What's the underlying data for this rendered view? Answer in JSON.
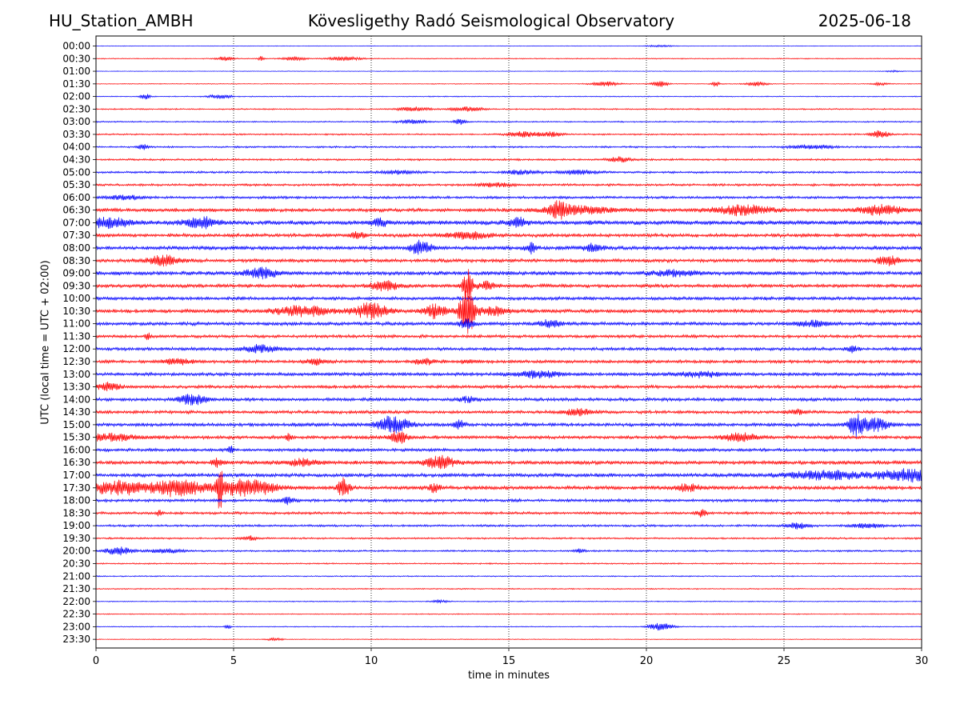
{
  "header": {
    "station": "HU_Station_AMBH",
    "observatory": "Kövesligethy Radó Seismological Observatory",
    "date": "2025-06-18"
  },
  "chart_data": {
    "type": "line",
    "xlabel": "time in minutes",
    "ylabel": "UTC (local time = UTC + 02:00)",
    "xlim": [
      0,
      30
    ],
    "xticks": [
      0,
      5,
      10,
      15,
      20,
      25,
      30
    ],
    "vertical_grid": "dotted",
    "trace_colors": [
      "#0000ff",
      "#ff0000"
    ],
    "row_labels": [
      "00:00",
      "00:30",
      "01:00",
      "01:30",
      "02:00",
      "02:30",
      "03:00",
      "03:30",
      "04:00",
      "04:30",
      "05:00",
      "05:30",
      "06:00",
      "06:30",
      "07:00",
      "07:30",
      "08:00",
      "08:30",
      "09:00",
      "09:30",
      "10:00",
      "10:30",
      "11:00",
      "11:30",
      "12:00",
      "12:30",
      "13:00",
      "13:30",
      "14:00",
      "14:30",
      "15:00",
      "15:30",
      "16:00",
      "16:30",
      "17:00",
      "17:30",
      "18:00",
      "18:30",
      "19:00",
      "19:30",
      "20:00",
      "20:30",
      "21:00",
      "21:30",
      "22:00",
      "22:30",
      "23:00",
      "23:30"
    ],
    "base_level": [
      0.3,
      0.5,
      0.3,
      0.4,
      0.5,
      0.7,
      0.7,
      0.8,
      0.9,
      1.0,
      1.1,
      1.2,
      1.3,
      1.8,
      2.3,
      1.8,
      2.0,
      1.8,
      2.0,
      1.8,
      1.7,
      1.9,
      1.8,
      1.6,
      1.6,
      1.6,
      1.7,
      1.6,
      1.7,
      1.6,
      1.8,
      1.7,
      1.6,
      1.9,
      1.9,
      2.0,
      1.5,
      1.3,
      1.1,
      0.9,
      0.9,
      0.7,
      0.6,
      0.6,
      0.5,
      0.5,
      0.5,
      0.4
    ],
    "events": [
      {
        "row": 0,
        "t": 20.5,
        "amp": 1.0,
        "w": 0.5
      },
      {
        "row": 1,
        "t": 4.7,
        "amp": 2.5,
        "w": 0.3
      },
      {
        "row": 1,
        "t": 6.0,
        "amp": 3.0,
        "w": 0.1
      },
      {
        "row": 1,
        "t": 7.2,
        "amp": 2.5,
        "w": 0.4
      },
      {
        "row": 1,
        "t": 9.0,
        "amp": 2.5,
        "w": 0.6
      },
      {
        "row": 2,
        "t": 29.0,
        "amp": 1.0,
        "w": 0.3
      },
      {
        "row": 3,
        "t": 18.5,
        "amp": 3.0,
        "w": 0.5
      },
      {
        "row": 3,
        "t": 20.5,
        "amp": 3.5,
        "w": 0.3
      },
      {
        "row": 3,
        "t": 22.5,
        "amp": 3.5,
        "w": 0.15
      },
      {
        "row": 3,
        "t": 24.0,
        "amp": 2.5,
        "w": 0.4
      },
      {
        "row": 3,
        "t": 28.5,
        "amp": 1.5,
        "w": 0.3
      },
      {
        "row": 4,
        "t": 1.8,
        "amp": 3.0,
        "w": 0.2
      },
      {
        "row": 4,
        "t": 4.5,
        "amp": 2.5,
        "w": 0.4
      },
      {
        "row": 5,
        "t": 11.5,
        "amp": 2.5,
        "w": 0.6
      },
      {
        "row": 5,
        "t": 13.5,
        "amp": 2.5,
        "w": 0.6
      },
      {
        "row": 6,
        "t": 11.5,
        "amp": 2.5,
        "w": 0.5
      },
      {
        "row": 6,
        "t": 13.2,
        "amp": 3.5,
        "w": 0.2
      },
      {
        "row": 7,
        "t": 15.5,
        "amp": 3.5,
        "w": 0.5
      },
      {
        "row": 7,
        "t": 16.5,
        "amp": 3.0,
        "w": 0.4
      },
      {
        "row": 7,
        "t": 28.5,
        "amp": 5.0,
        "w": 0.3
      },
      {
        "row": 8,
        "t": 1.7,
        "amp": 3.0,
        "w": 0.2
      },
      {
        "row": 8,
        "t": 26.0,
        "amp": 2.5,
        "w": 0.8
      },
      {
        "row": 9,
        "t": 19.0,
        "amp": 3.0,
        "w": 0.4
      },
      {
        "row": 10,
        "t": 11.0,
        "amp": 2.5,
        "w": 0.6
      },
      {
        "row": 10,
        "t": 15.5,
        "amp": 2.5,
        "w": 0.6
      },
      {
        "row": 10,
        "t": 17.5,
        "amp": 2.5,
        "w": 0.7
      },
      {
        "row": 11,
        "t": 14.5,
        "amp": 2.5,
        "w": 0.6
      },
      {
        "row": 12,
        "t": 1.0,
        "amp": 3.0,
        "w": 0.6
      },
      {
        "row": 13,
        "t": 16.8,
        "amp": 8.0,
        "w": 0.3
      },
      {
        "row": 13,
        "t": 17.5,
        "amp": 5.0,
        "w": 1.2
      },
      {
        "row": 13,
        "t": 23.5,
        "amp": 6.0,
        "w": 1.0
      },
      {
        "row": 13,
        "t": 28.5,
        "amp": 6.0,
        "w": 0.8
      },
      {
        "row": 14,
        "t": 0.5,
        "amp": 6.0,
        "w": 0.8
      },
      {
        "row": 14,
        "t": 3.8,
        "amp": 7.0,
        "w": 0.5
      },
      {
        "row": 14,
        "t": 10.3,
        "amp": 5.0,
        "w": 0.3
      },
      {
        "row": 14,
        "t": 15.3,
        "amp": 6.0,
        "w": 0.3
      },
      {
        "row": 15,
        "t": 9.5,
        "amp": 3.5,
        "w": 0.3
      },
      {
        "row": 15,
        "t": 13.5,
        "amp": 4.0,
        "w": 0.8
      },
      {
        "row": 16,
        "t": 11.8,
        "amp": 9.0,
        "w": 0.4
      },
      {
        "row": 16,
        "t": 15.8,
        "amp": 7.0,
        "w": 0.2
      },
      {
        "row": 16,
        "t": 18.0,
        "amp": 4.0,
        "w": 0.4
      },
      {
        "row": 17,
        "t": 2.5,
        "amp": 6.0,
        "w": 0.6
      },
      {
        "row": 17,
        "t": 28.8,
        "amp": 5.0,
        "w": 0.4
      },
      {
        "row": 18,
        "t": 6.0,
        "amp": 6.0,
        "w": 0.6
      },
      {
        "row": 18,
        "t": 21.0,
        "amp": 3.0,
        "w": 0.8
      },
      {
        "row": 19,
        "t": 10.5,
        "amp": 6.0,
        "w": 0.5
      },
      {
        "row": 19,
        "t": 13.5,
        "amp": 20.0,
        "w": 0.2
      },
      {
        "row": 19,
        "t": 14.2,
        "amp": 5.0,
        "w": 0.3
      },
      {
        "row": 21,
        "t": 7.5,
        "amp": 6.0,
        "w": 1.0
      },
      {
        "row": 21,
        "t": 10.0,
        "amp": 10.0,
        "w": 0.6
      },
      {
        "row": 21,
        "t": 12.3,
        "amp": 8.0,
        "w": 0.4
      },
      {
        "row": 21,
        "t": 13.5,
        "amp": 28.0,
        "w": 0.3
      },
      {
        "row": 21,
        "t": 14.5,
        "amp": 6.0,
        "w": 0.4
      },
      {
        "row": 22,
        "t": 13.5,
        "amp": 5.0,
        "w": 0.3
      },
      {
        "row": 22,
        "t": 16.5,
        "amp": 4.0,
        "w": 0.4
      },
      {
        "row": 22,
        "t": 26.0,
        "amp": 3.5,
        "w": 0.6
      },
      {
        "row": 23,
        "t": 1.9,
        "amp": 4.0,
        "w": 0.1
      },
      {
        "row": 24,
        "t": 6.0,
        "amp": 4.5,
        "w": 0.6
      },
      {
        "row": 24,
        "t": 27.5,
        "amp": 4.0,
        "w": 0.2
      },
      {
        "row": 25,
        "t": 3.0,
        "amp": 3.0,
        "w": 0.6
      },
      {
        "row": 25,
        "t": 8.0,
        "amp": 4.0,
        "w": 0.3
      },
      {
        "row": 25,
        "t": 12.0,
        "amp": 3.5,
        "w": 0.4
      },
      {
        "row": 25,
        "t": 13.5,
        "amp": 3.0,
        "w": 0.2
      },
      {
        "row": 26,
        "t": 16.0,
        "amp": 4.0,
        "w": 0.8
      },
      {
        "row": 26,
        "t": 22.0,
        "amp": 3.0,
        "w": 0.8
      },
      {
        "row": 27,
        "t": 0.5,
        "amp": 5.0,
        "w": 0.4
      },
      {
        "row": 28,
        "t": 3.5,
        "amp": 6.0,
        "w": 0.5
      },
      {
        "row": 28,
        "t": 13.5,
        "amp": 3.0,
        "w": 0.4
      },
      {
        "row": 29,
        "t": 17.5,
        "amp": 4.5,
        "w": 0.5
      },
      {
        "row": 29,
        "t": 25.5,
        "amp": 3.0,
        "w": 0.3
      },
      {
        "row": 30,
        "t": 10.8,
        "amp": 10.0,
        "w": 0.6
      },
      {
        "row": 30,
        "t": 13.2,
        "amp": 5.0,
        "w": 0.2
      },
      {
        "row": 30,
        "t": 27.6,
        "amp": 14.0,
        "w": 0.25
      },
      {
        "row": 30,
        "t": 28.3,
        "amp": 8.0,
        "w": 0.5
      },
      {
        "row": 31,
        "t": 0.5,
        "amp": 4.5,
        "w": 1.0
      },
      {
        "row": 31,
        "t": 7.0,
        "amp": 3.5,
        "w": 0.1
      },
      {
        "row": 31,
        "t": 11.0,
        "amp": 9.0,
        "w": 0.3
      },
      {
        "row": 31,
        "t": 23.4,
        "amp": 5.0,
        "w": 0.6
      },
      {
        "row": 32,
        "t": 4.9,
        "amp": 4.0,
        "w": 0.1
      },
      {
        "row": 33,
        "t": 4.4,
        "amp": 5.0,
        "w": 0.2
      },
      {
        "row": 33,
        "t": 7.5,
        "amp": 4.0,
        "w": 0.6
      },
      {
        "row": 33,
        "t": 12.5,
        "amp": 8.0,
        "w": 0.5
      },
      {
        "row": 34,
        "t": 26.5,
        "amp": 5.0,
        "w": 1.5
      },
      {
        "row": 34,
        "t": 29.5,
        "amp": 7.0,
        "w": 1.0
      },
      {
        "row": 35,
        "t": 0.8,
        "amp": 8.0,
        "w": 1.0
      },
      {
        "row": 35,
        "t": 3.0,
        "amp": 10.0,
        "w": 1.0
      },
      {
        "row": 35,
        "t": 4.5,
        "amp": 24.0,
        "w": 0.12
      },
      {
        "row": 35,
        "t": 5.5,
        "amp": 10.0,
        "w": 1.0
      },
      {
        "row": 35,
        "t": 9.0,
        "amp": 12.0,
        "w": 0.2
      },
      {
        "row": 35,
        "t": 12.3,
        "amp": 5.0,
        "w": 0.2
      },
      {
        "row": 35,
        "t": 21.5,
        "amp": 4.0,
        "w": 0.4
      },
      {
        "row": 36,
        "t": 7.0,
        "amp": 4.0,
        "w": 0.3
      },
      {
        "row": 37,
        "t": 2.3,
        "amp": 3.0,
        "w": 0.1
      },
      {
        "row": 37,
        "t": 22.0,
        "amp": 4.0,
        "w": 0.2
      },
      {
        "row": 38,
        "t": 25.5,
        "amp": 4.0,
        "w": 0.4
      },
      {
        "row": 38,
        "t": 28.0,
        "amp": 2.5,
        "w": 0.6
      },
      {
        "row": 39,
        "t": 5.6,
        "amp": 2.5,
        "w": 0.3
      },
      {
        "row": 40,
        "t": 0.8,
        "amp": 5.0,
        "w": 0.5
      },
      {
        "row": 40,
        "t": 2.5,
        "amp": 2.5,
        "w": 0.6
      },
      {
        "row": 40,
        "t": 17.6,
        "amp": 2.5,
        "w": 0.2
      },
      {
        "row": 44,
        "t": 12.5,
        "amp": 1.5,
        "w": 0.3
      },
      {
        "row": 46,
        "t": 4.8,
        "amp": 3.0,
        "w": 0.1
      },
      {
        "row": 46,
        "t": 20.5,
        "amp": 5.0,
        "w": 0.4
      },
      {
        "row": 47,
        "t": 6.5,
        "amp": 1.5,
        "w": 0.3
      }
    ]
  }
}
